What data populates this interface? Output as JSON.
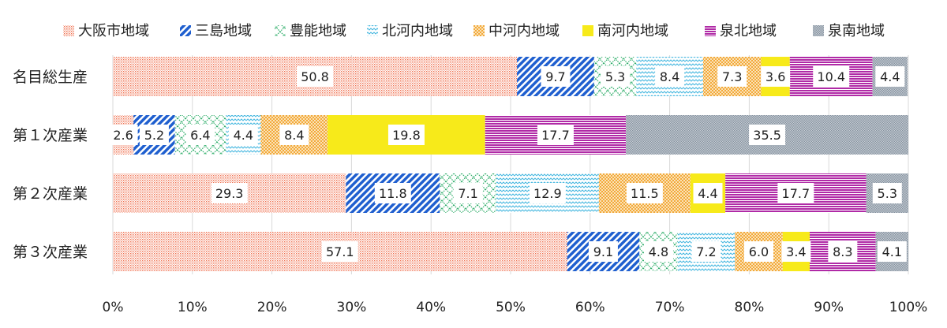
{
  "chart_data": {
    "type": "bar",
    "orientation": "horizontal",
    "stacked": "percent",
    "categories": [
      "名目総生産",
      "第１次産業",
      "第２次産業",
      "第３次産業"
    ],
    "series": [
      {
        "name": "大阪市地域",
        "color": "#f07050",
        "pattern": "dots",
        "values": [
          50.8,
          2.6,
          29.3,
          57.1
        ]
      },
      {
        "name": "三島地域",
        "color": "#1f5fcf",
        "pattern": "diagonal",
        "values": [
          9.7,
          5.2,
          11.8,
          9.1
        ]
      },
      {
        "name": "豊能地域",
        "color": "#2fae6a",
        "pattern": "diamond",
        "values": [
          5.3,
          6.4,
          7.1,
          4.8
        ]
      },
      {
        "name": "北河内地域",
        "color": "#47b8e0",
        "pattern": "wave",
        "values": [
          8.4,
          4.4,
          12.9,
          7.2
        ]
      },
      {
        "name": "中河内地域",
        "color": "#f2a93b",
        "pattern": "checker",
        "values": [
          7.3,
          8.4,
          11.5,
          6.0
        ]
      },
      {
        "name": "南河内地域",
        "color": "#f7ea1a",
        "pattern": "solid",
        "values": [
          3.6,
          19.8,
          4.4,
          3.4
        ]
      },
      {
        "name": "泉北地域",
        "color": "#b02aa6",
        "pattern": "hlines",
        "values": [
          10.4,
          17.7,
          17.7,
          8.3
        ]
      },
      {
        "name": "泉南地域",
        "color": "#8793a0",
        "pattern": "fine",
        "values": [
          4.4,
          35.5,
          5.3,
          4.1
        ]
      }
    ],
    "x_ticks": [
      "0%",
      "10%",
      "20%",
      "30%",
      "40%",
      "50%",
      "60%",
      "70%",
      "80%",
      "90%",
      "100%"
    ],
    "xlim": [
      0,
      100
    ],
    "grid": "vertical",
    "legend": "top"
  }
}
